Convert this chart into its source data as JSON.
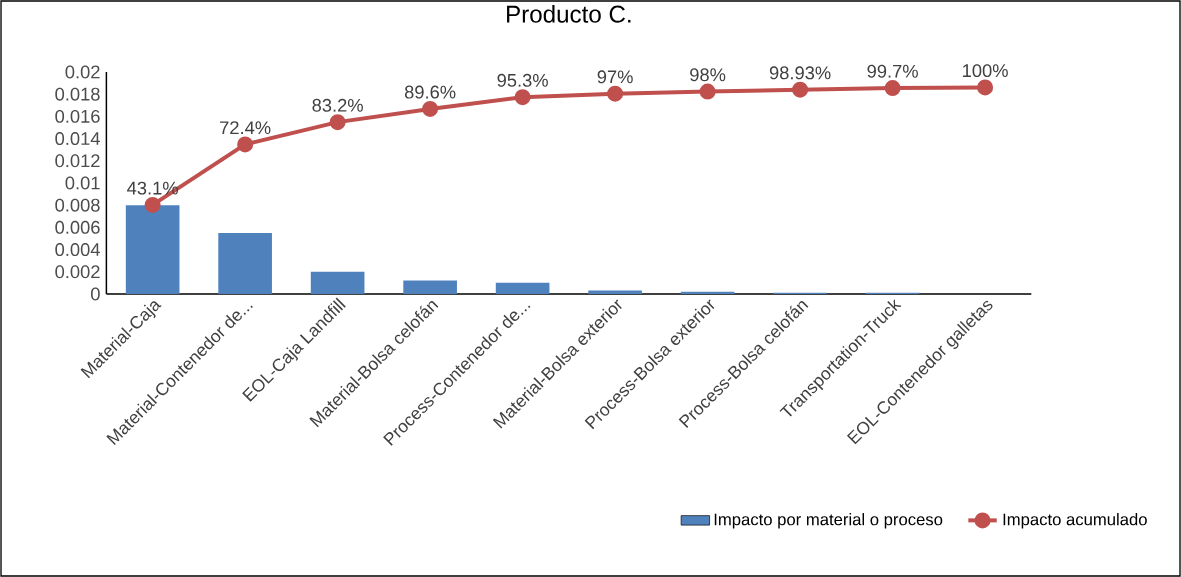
{
  "chart_data": {
    "type": "bar",
    "title": "Producto C.",
    "categories": [
      "Material-Caja",
      "Material-Contenedor de...",
      "EOL-Caja Landfill",
      "Material-Bolsa celofán",
      "Process-Contenedor de...",
      "Material-Bolsa exterior",
      "Process-Bolsa exterior",
      "Process-Bolsa celofán",
      "Transportation-Truck",
      "EOL-Contenedor galletas"
    ],
    "series": [
      {
        "name": "Impacto por material o proceso",
        "color": "#4f81bd",
        "values": [
          0.008,
          0.0055,
          0.002,
          0.0012,
          0.001,
          0.0003,
          0.0002,
          0.0001,
          0.0001,
          0
        ]
      },
      {
        "name": "Impacto acumulado",
        "type": "line",
        "axis": "y2",
        "color": "#c0504d",
        "marker": "circle",
        "values": [
          43.1,
          72.4,
          83.2,
          89.6,
          95.3,
          97,
          98,
          98.93,
          99.7,
          100
        ],
        "value_labels": [
          "43.1%",
          "72.4%",
          "83.2%",
          "89.6%",
          "95.3%",
          "97%",
          "98%",
          "98.93%",
          "99.7%",
          "100%"
        ]
      }
    ],
    "ylim": [
      0,
      0.02
    ],
    "yticks": [
      0,
      0.002,
      0.004,
      0.006,
      0.008,
      0.01,
      0.012,
      0.014,
      0.016,
      0.018,
      0.02
    ],
    "y2lim": [
      0,
      107.5
    ],
    "grid": false,
    "legend": "bottom right"
  }
}
